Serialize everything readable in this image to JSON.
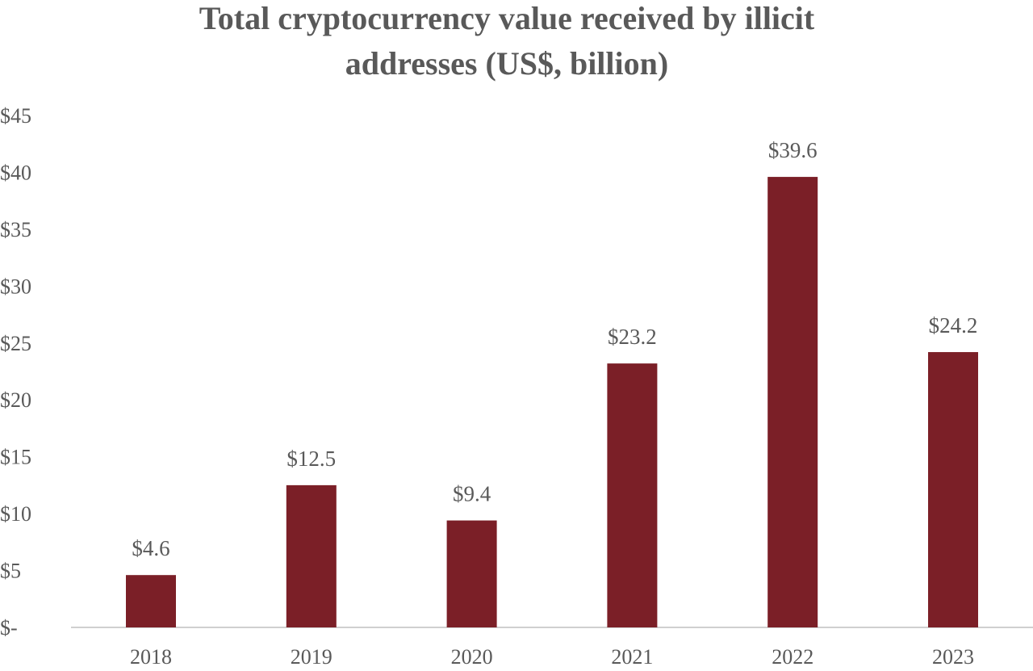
{
  "chart_data": {
    "type": "bar",
    "title": "Total cryptocurrency value received by illicit addresses (US$, billion)",
    "title_lines": [
      "Total cryptocurrency value received by illicit",
      "addresses (US$, billion)"
    ],
    "categories": [
      "2018",
      "2019",
      "2020",
      "2021",
      "2022",
      "2023"
    ],
    "values": [
      4.6,
      12.5,
      9.4,
      23.2,
      39.6,
      24.2
    ],
    "data_labels": [
      "$4.6",
      "$12.5",
      "$9.4",
      "$23.2",
      "$39.6",
      "$24.2"
    ],
    "ylim": [
      0,
      45
    ],
    "yticks": [
      0,
      5,
      10,
      15,
      20,
      25,
      30,
      35,
      40,
      45
    ],
    "ytick_labels": [
      "$-",
      "$5",
      "$10",
      "$15",
      "$20",
      "$25",
      "$30",
      "$35",
      "$40",
      "$45"
    ],
    "xlabel": "",
    "ylabel": "",
    "grid": false,
    "legend": "none",
    "bar_color": "#7b1f27"
  }
}
